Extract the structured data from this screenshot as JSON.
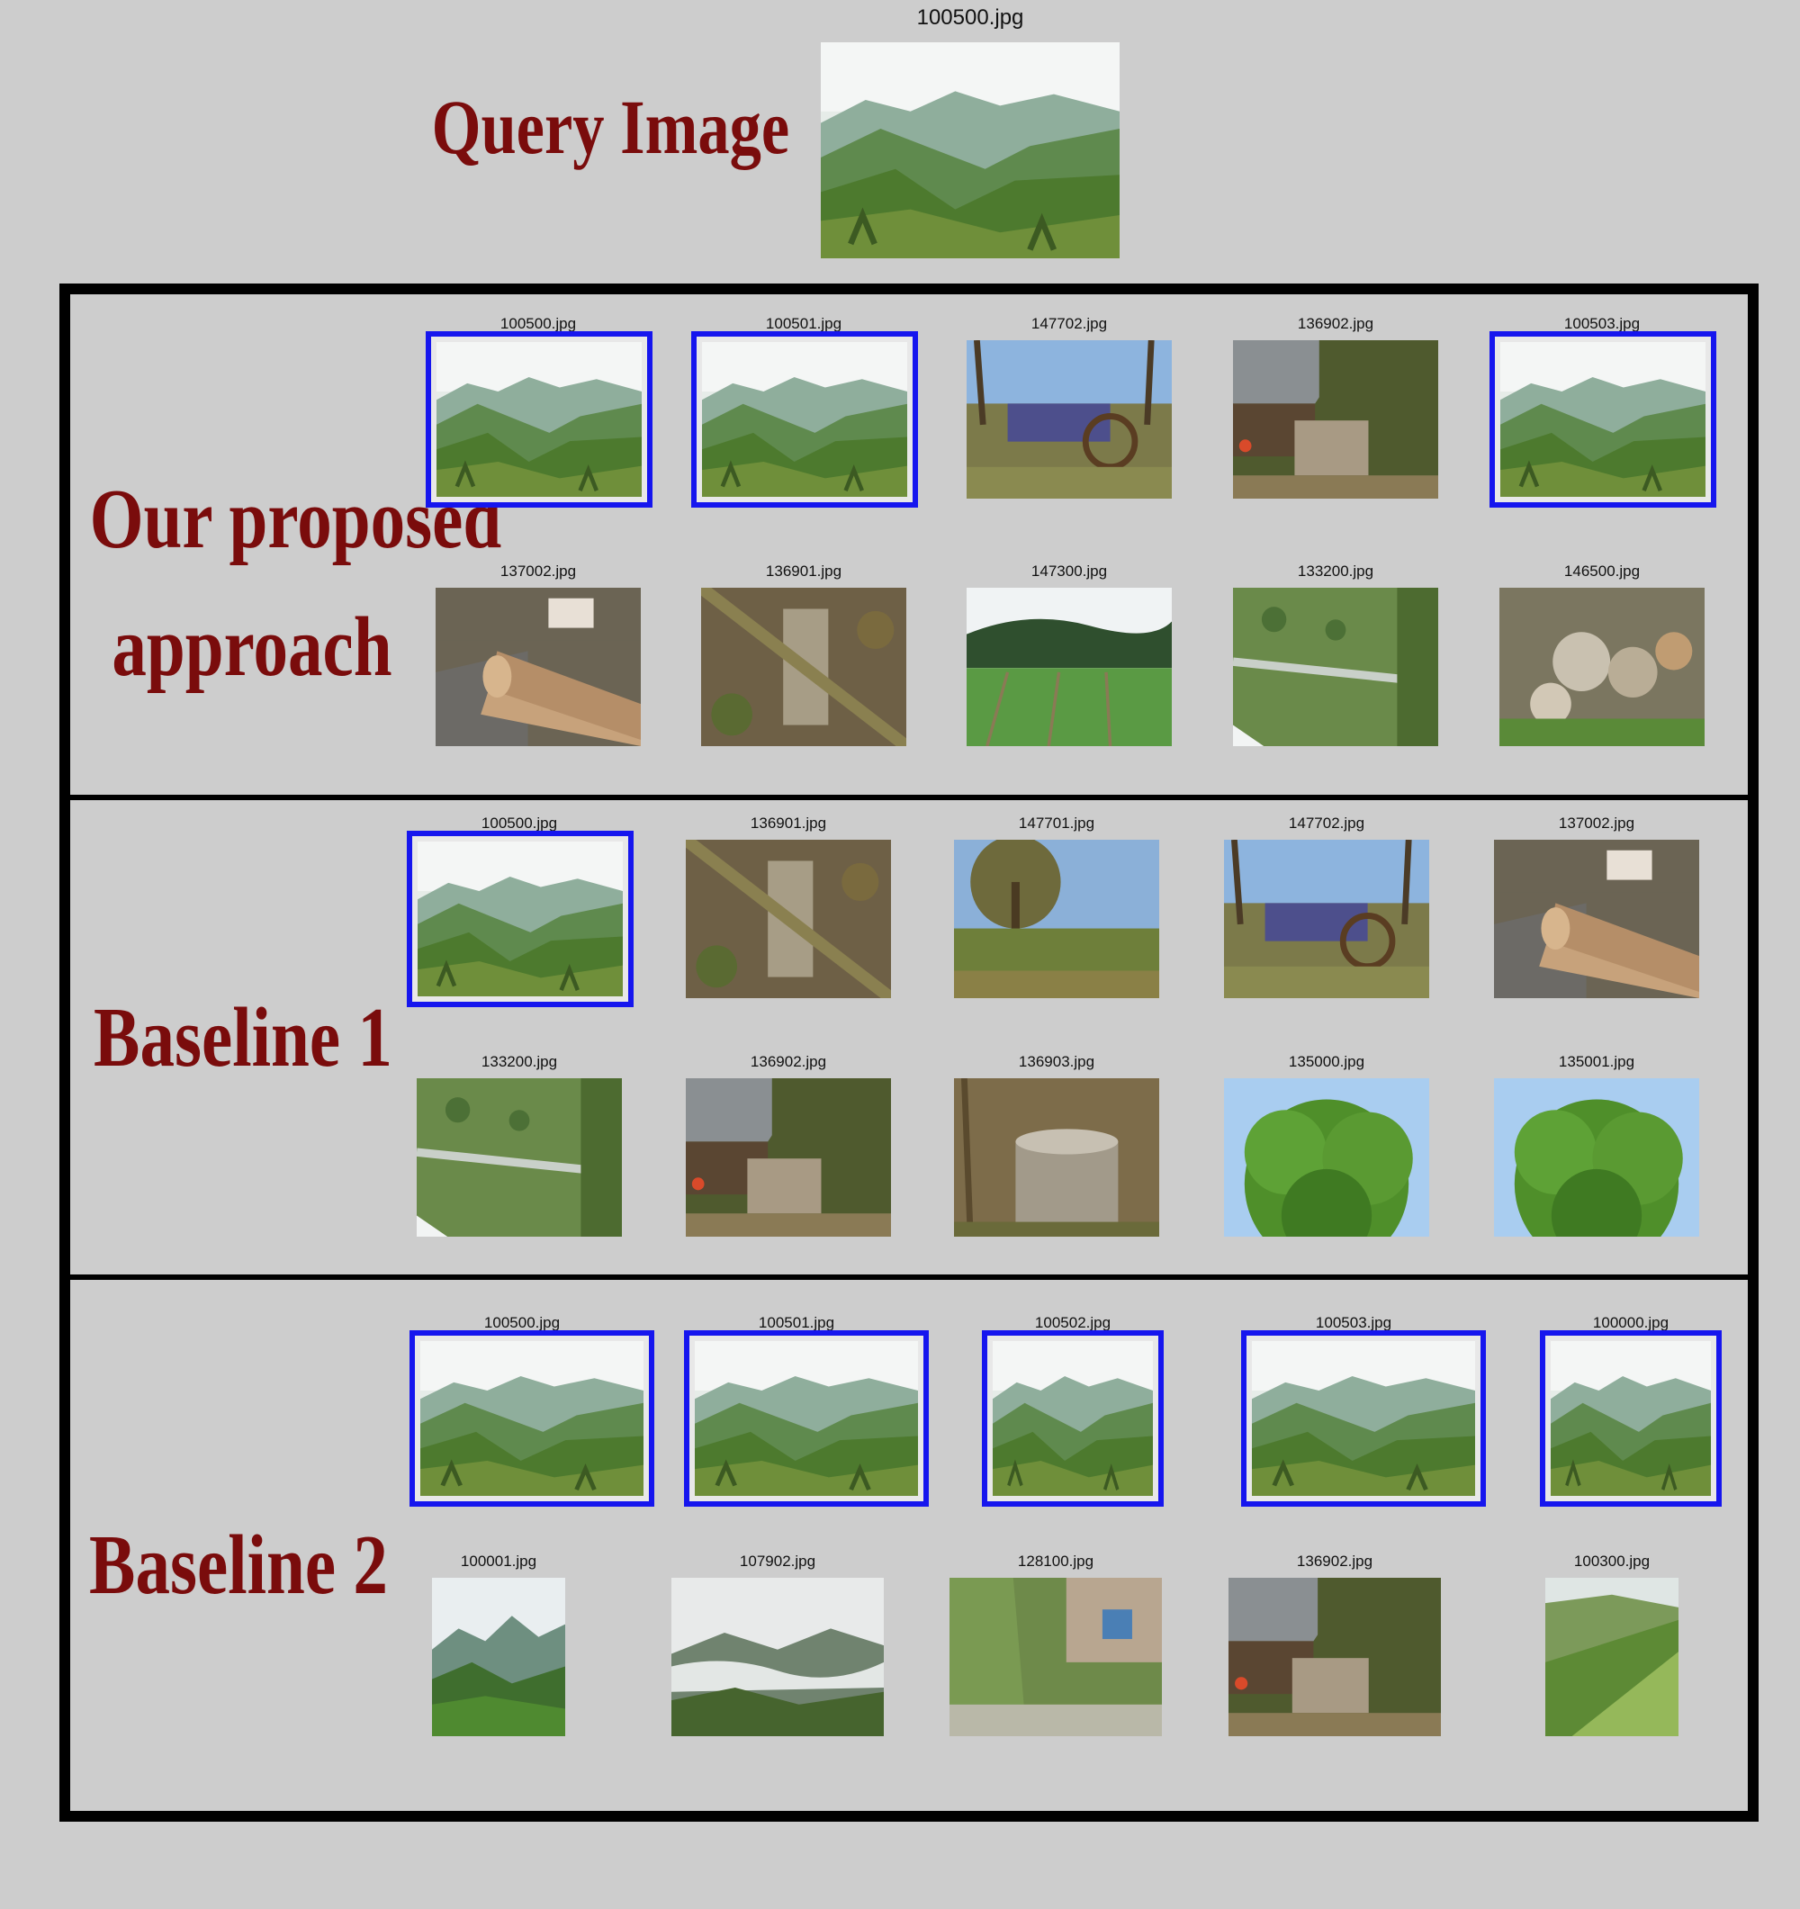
{
  "labels": {
    "query": "Query Image",
    "ours_line1": "Our proposed",
    "ours_line2": "approach",
    "baseline1": "Baseline 1",
    "baseline2": "Baseline 2"
  },
  "query": {
    "filename": "100500.jpg",
    "scene": "mountain-valley"
  },
  "colors": {
    "label": "#7a0c0c",
    "highlight": "#1616ee",
    "background": "#cdcdcd",
    "frame": "#000000"
  },
  "ours": {
    "row1": [
      {
        "file": "100500.jpg",
        "scene": "mountain",
        "hit": true
      },
      {
        "file": "100501.jpg",
        "scene": "mountain",
        "hit": true
      },
      {
        "file": "147702.jpg",
        "scene": "cart",
        "hit": false
      },
      {
        "file": "136902.jpg",
        "scene": "barn",
        "hit": false
      },
      {
        "file": "100503.jpg",
        "scene": "mountain",
        "hit": true
      }
    ],
    "row2": [
      {
        "file": "137002.jpg",
        "scene": "logs",
        "hit": false
      },
      {
        "file": "136901.jpg",
        "scene": "forest-floor",
        "hit": false
      },
      {
        "file": "147300.jpg",
        "scene": "field",
        "hit": false
      },
      {
        "file": "133200.jpg",
        "scene": "rotated-meadow",
        "hit": false
      },
      {
        "file": "146500.jpg",
        "scene": "woodpile",
        "hit": false
      }
    ]
  },
  "baseline1": {
    "row1": [
      {
        "file": "100500.jpg",
        "scene": "mountain",
        "hit": true
      },
      {
        "file": "136901.jpg",
        "scene": "forest-floor",
        "hit": false
      },
      {
        "file": "147701.jpg",
        "scene": "tree-field",
        "hit": false
      },
      {
        "file": "147702.jpg",
        "scene": "cart",
        "hit": false
      },
      {
        "file": "137002.jpg",
        "scene": "logs",
        "hit": false
      }
    ],
    "row2": [
      {
        "file": "133200.jpg",
        "scene": "rotated-meadow",
        "hit": false
      },
      {
        "file": "136902.jpg",
        "scene": "barn",
        "hit": false
      },
      {
        "file": "136903.jpg",
        "scene": "stump",
        "hit": false
      },
      {
        "file": "135000.jpg",
        "scene": "tree-canopy",
        "hit": false
      },
      {
        "file": "135001.jpg",
        "scene": "tree-canopy",
        "hit": false
      }
    ]
  },
  "baseline2": {
    "row1": [
      {
        "file": "100500.jpg",
        "scene": "mountain",
        "hit": true
      },
      {
        "file": "100501.jpg",
        "scene": "mountain",
        "hit": true
      },
      {
        "file": "100502.jpg",
        "scene": "mountain",
        "hit": true
      },
      {
        "file": "100503.jpg",
        "scene": "mountain",
        "hit": true
      },
      {
        "file": "100000.jpg",
        "scene": "mountain",
        "hit": true
      }
    ],
    "row2": [
      {
        "file": "100001.jpg",
        "scene": "mountain-green",
        "hit": false
      },
      {
        "file": "107902.jpg",
        "scene": "misty-valley",
        "hit": false
      },
      {
        "file": "128100.jpg",
        "scene": "house-garden",
        "hit": false
      },
      {
        "file": "136902.jpg",
        "scene": "barn",
        "hit": false
      },
      {
        "file": "100300.jpg",
        "scene": "hillside",
        "hit": false
      }
    ]
  }
}
